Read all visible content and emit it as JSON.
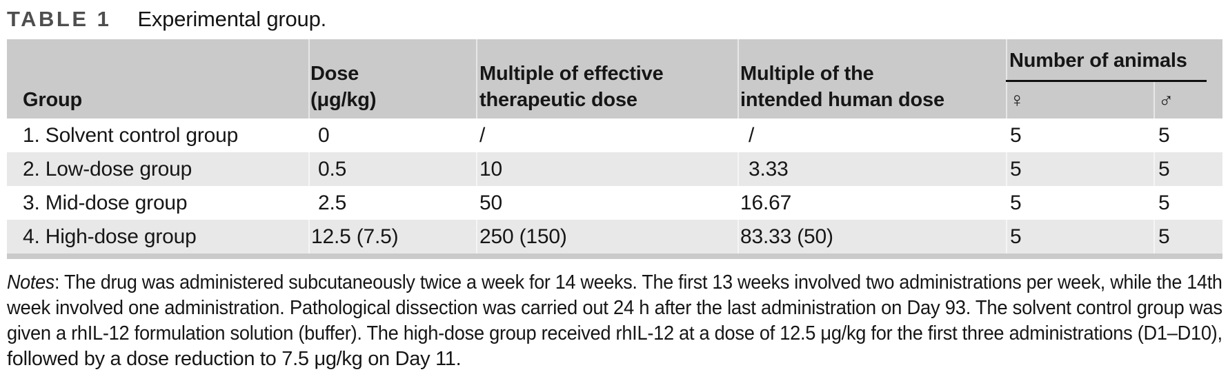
{
  "title": {
    "label": "TABLE 1",
    "caption": "Experimental group."
  },
  "table": {
    "columns": [
      {
        "header_top": "",
        "header_bottom": "Group"
      },
      {
        "header_top": "Dose",
        "header_bottom": "(μg/kg)"
      },
      {
        "header_top": "Multiple of effective",
        "header_bottom": "therapeutic dose"
      },
      {
        "header_top": "Multiple of the",
        "header_bottom": "intended human dose"
      }
    ],
    "animals_group": {
      "label": "Number of animals",
      "female_symbol": "♀",
      "male_symbol": "♂"
    },
    "rows": [
      {
        "group": "1. Solvent control group",
        "dose": "0",
        "multiple_effective": "/",
        "multiple_human": "/",
        "female": "5",
        "male": "5"
      },
      {
        "group": "2. Low-dose group",
        "dose": "0.5",
        "multiple_effective": "10",
        "multiple_human": "3.33",
        "female": "5",
        "male": "5"
      },
      {
        "group": "3. Mid-dose group",
        "dose": "2.5",
        "multiple_effective": "50",
        "multiple_human": "16.67",
        "female": "5",
        "male": "5"
      },
      {
        "group": "4. High-dose group",
        "dose": "12.5 (7.5)",
        "multiple_effective": "250 (150)",
        "multiple_human": "83.33 (50)",
        "female": "5",
        "male": "5"
      }
    ]
  },
  "notes": {
    "label": "Notes",
    "lines": [
      ": The drug was administered subcutaneously twice a week for 14 weeks. The first 13 weeks involved two administrations per week, while the 14th",
      "week involved one administration. Pathological dissection was carried out 24 h after the last administration on Day 93. The solvent control group was",
      "given a rhIL-12 formulation solution (buffer). The high-dose group received rhIL-12 at a dose of 12.5 μg/kg for the first three administrations (D1–D10),",
      "followed by a dose reduction to 7.5 μg/kg on Day 11."
    ]
  },
  "colors": {
    "header-bg": "#cacaca",
    "row-gray": "#e8e8e8",
    "title-gray": "#4e4e4e",
    "text": "#161616"
  }
}
